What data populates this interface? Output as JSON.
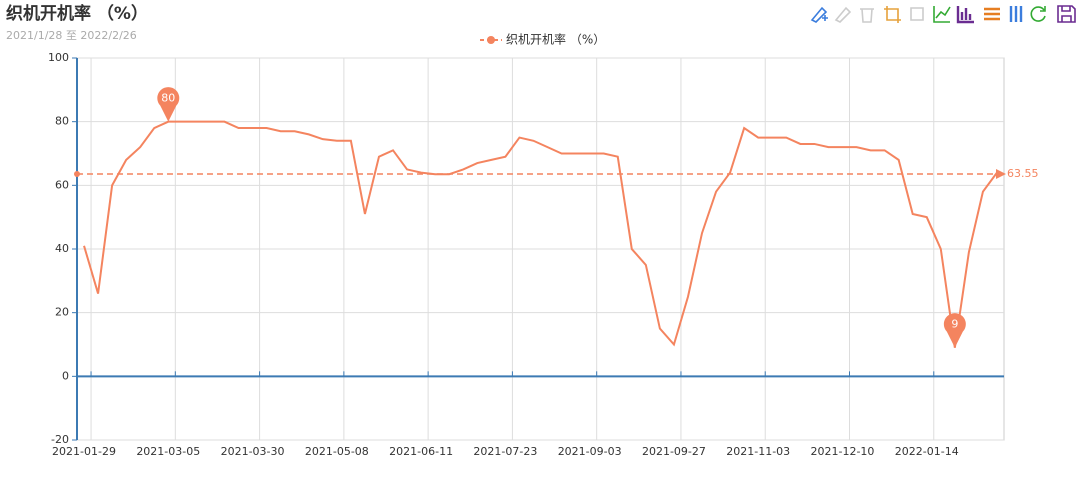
{
  "chart_data": {
    "type": "line",
    "title": "织机开机率 （%）",
    "subtitle": "2021/1/28 至 2022/2/26",
    "categories": [
      "2021-01-29",
      null,
      null,
      null,
      null,
      null,
      "2021-03-05",
      null,
      null,
      null,
      null,
      null,
      "2021-03-30",
      null,
      null,
      null,
      null,
      null,
      "2021-05-08",
      null,
      null,
      null,
      null,
      null,
      "2021-06-11",
      null,
      null,
      null,
      null,
      null,
      "2021-07-23",
      null,
      null,
      null,
      null,
      null,
      "2021-09-03",
      null,
      null,
      null,
      null,
      null,
      "2021-09-27",
      null,
      null,
      null,
      null,
      null,
      "2021-11-03",
      null,
      null,
      null,
      null,
      null,
      "2021-12-10",
      null,
      null,
      null,
      null,
      null,
      "2022-01-14",
      null,
      null,
      null,
      null,
      null
    ],
    "series": [
      {
        "name": "织机开机率 （%）",
        "color": "#f4845f",
        "values": [
          41,
          26,
          60,
          68,
          72,
          78,
          80,
          80,
          80,
          80,
          80,
          78,
          78,
          78,
          77,
          77,
          76,
          74.5,
          74,
          74,
          51,
          69,
          71,
          65,
          64,
          63.5,
          63.5,
          65,
          67,
          68,
          69,
          75,
          74,
          72,
          70,
          70,
          70,
          70,
          69,
          40,
          35,
          15,
          10,
          25,
          45,
          58,
          64,
          78,
          75,
          75,
          75,
          73,
          73,
          72,
          72,
          72,
          71,
          71,
          68,
          51,
          50,
          40,
          9,
          39,
          58,
          64
        ]
      }
    ],
    "mark_points": {
      "max": 80,
      "min": 9
    },
    "mark_line": {
      "average": 63.55
    },
    "ylim": [
      -20,
      100
    ],
    "yticks": [
      -20,
      0,
      20,
      40,
      60,
      80,
      100
    ],
    "grid": true
  }
}
